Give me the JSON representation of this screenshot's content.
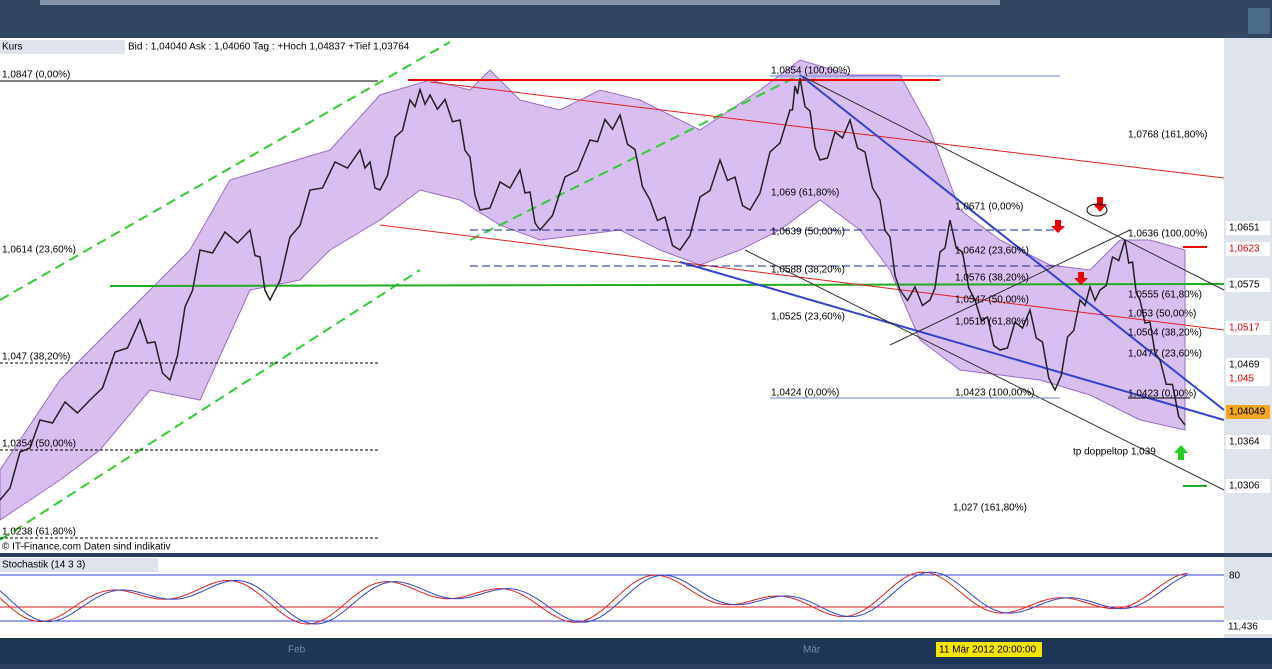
{
  "toolbar": {
    "tab": "Kurs",
    "info": "Bid : 1,04040 Ask : 1,04060  Tag : +Hoch 1,04837 +Tief 1,03764"
  },
  "fib_labels": [
    "1,0847 (0,00%)",
    "1,0614 (23,60%)",
    "1,047 (38,20%)",
    "1,0354 (50,00%)",
    "1,0238 (61,80%)",
    "1,0854 (100,00%)",
    "1,069 (61,80%)",
    "1,0639 (50,00%)",
    "1,0588 (38,20%)",
    "1,0525 (23,60%)",
    "1,0424 (0,00%)",
    "1,0768 (161,80%)",
    "1,0671 (0,00%)",
    "1,0642 (23,60%)",
    "1,0576 (38,20%)",
    "1,0547 (50,00%)",
    "1,0518 (61,80%)",
    "1,0423 (100,00%)",
    "1,027 (161,80%)",
    "1,0636 (100,00%)",
    "1,0555 (61,80%)",
    "1,053 (50,00%)",
    "1,0504 (38,20%)",
    "1,0477 (23,60%)",
    "1,0423 (0,00%)"
  ],
  "price_tags": [
    "1,0651",
    "1,0623",
    "1,0575",
    "1,0517",
    "1,0469",
    "1,045",
    "1,04049",
    "1,0364",
    "1,0306"
  ],
  "annotation": "tp doppeltop 1,039",
  "source": "© IT-Finance.com  Daten sind indikativ",
  "stochastic": {
    "label": "Stochastik (14 3 3)",
    "levels": [
      "80",
      "11,436"
    ]
  },
  "date_marker": "11 Mär 2012 20:00:00",
  "axis_months": [
    "Feb",
    "Mär"
  ]
}
